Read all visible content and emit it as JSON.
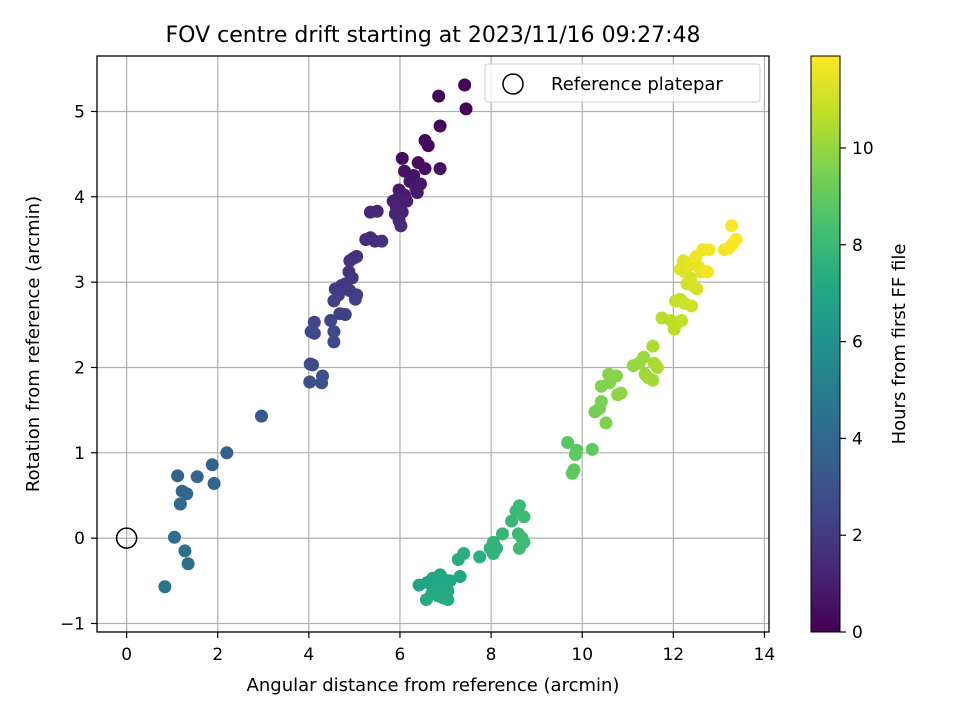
{
  "chart_data": {
    "type": "scatter",
    "title": "FOV centre drift starting at 2023/11/16 09:27:48",
    "xlabel": "Angular distance from reference (arcmin)",
    "ylabel": "Rotation from reference (arcmin)",
    "xlim": [
      -0.65,
      14.1
    ],
    "ylim": [
      -1.1,
      5.65
    ],
    "xticks": [
      0,
      2,
      4,
      6,
      8,
      10,
      12,
      14
    ],
    "yticks": [
      -1,
      0,
      1,
      2,
      3,
      4,
      5
    ],
    "grid": true,
    "legend": {
      "placement": "upper right",
      "entries": [
        "Reference platepar"
      ]
    },
    "reference_point": {
      "x": 0,
      "y": 0,
      "label": "Reference platepar"
    },
    "colorbar": {
      "label": "Hours from first FF file",
      "colormap": "viridis",
      "range": [
        0,
        11.9
      ],
      "ticks": [
        0,
        2,
        4,
        6,
        8,
        10
      ]
    },
    "points": [
      {
        "x": 7.42,
        "y": 5.31,
        "c": 0.05
      },
      {
        "x": 6.85,
        "y": 5.18,
        "c": 0.1
      },
      {
        "x": 7.45,
        "y": 5.03,
        "c": 0.15
      },
      {
        "x": 6.88,
        "y": 4.83,
        "c": 0.2
      },
      {
        "x": 6.55,
        "y": 4.66,
        "c": 0.25
      },
      {
        "x": 6.62,
        "y": 4.6,
        "c": 0.3
      },
      {
        "x": 6.05,
        "y": 4.45,
        "c": 0.35
      },
      {
        "x": 6.4,
        "y": 4.4,
        "c": 0.4
      },
      {
        "x": 6.55,
        "y": 4.33,
        "c": 0.45
      },
      {
        "x": 6.88,
        "y": 4.33,
        "c": 0.5
      },
      {
        "x": 6.1,
        "y": 4.3,
        "c": 0.55
      },
      {
        "x": 6.3,
        "y": 4.25,
        "c": 0.6
      },
      {
        "x": 6.22,
        "y": 4.18,
        "c": 0.65
      },
      {
        "x": 6.45,
        "y": 4.15,
        "c": 0.7
      },
      {
        "x": 5.98,
        "y": 4.08,
        "c": 0.75
      },
      {
        "x": 6.35,
        "y": 4.1,
        "c": 0.8
      },
      {
        "x": 6.38,
        "y": 4.05,
        "c": 0.85
      },
      {
        "x": 6.1,
        "y": 4.02,
        "c": 0.9
      },
      {
        "x": 5.95,
        "y": 3.98,
        "c": 0.95
      },
      {
        "x": 6.15,
        "y": 3.95,
        "c": 1.0
      },
      {
        "x": 5.85,
        "y": 3.95,
        "c": 1.05
      },
      {
        "x": 5.92,
        "y": 3.88,
        "c": 1.1
      },
      {
        "x": 6.05,
        "y": 3.82,
        "c": 1.15
      },
      {
        "x": 5.9,
        "y": 3.8,
        "c": 1.2
      },
      {
        "x": 5.5,
        "y": 3.83,
        "c": 1.25
      },
      {
        "x": 5.35,
        "y": 3.82,
        "c": 1.3
      },
      {
        "x": 5.98,
        "y": 3.72,
        "c": 1.35
      },
      {
        "x": 6.02,
        "y": 3.66,
        "c": 1.4
      },
      {
        "x": 5.35,
        "y": 3.52,
        "c": 1.45
      },
      {
        "x": 5.25,
        "y": 3.5,
        "c": 1.5
      },
      {
        "x": 5.45,
        "y": 3.48,
        "c": 1.55
      },
      {
        "x": 5.6,
        "y": 3.48,
        "c": 1.6
      },
      {
        "x": 5.05,
        "y": 3.3,
        "c": 1.65
      },
      {
        "x": 4.98,
        "y": 3.28,
        "c": 1.7
      },
      {
        "x": 4.9,
        "y": 3.25,
        "c": 1.75
      },
      {
        "x": 4.88,
        "y": 3.12,
        "c": 1.8
      },
      {
        "x": 4.95,
        "y": 3.05,
        "c": 1.85
      },
      {
        "x": 4.8,
        "y": 2.98,
        "c": 1.9
      },
      {
        "x": 4.72,
        "y": 2.96,
        "c": 1.95
      },
      {
        "x": 4.58,
        "y": 2.92,
        "c": 2.0
      },
      {
        "x": 4.9,
        "y": 2.9,
        "c": 2.05
      },
      {
        "x": 4.65,
        "y": 2.85,
        "c": 2.1
      },
      {
        "x": 5.05,
        "y": 2.85,
        "c": 2.15
      },
      {
        "x": 5.02,
        "y": 2.8,
        "c": 2.2
      },
      {
        "x": 4.55,
        "y": 2.78,
        "c": 2.25
      },
      {
        "x": 4.68,
        "y": 2.63,
        "c": 2.3
      },
      {
        "x": 4.8,
        "y": 2.62,
        "c": 2.35
      },
      {
        "x": 4.48,
        "y": 2.55,
        "c": 2.4
      },
      {
        "x": 4.12,
        "y": 2.53,
        "c": 2.45
      },
      {
        "x": 4.05,
        "y": 2.42,
        "c": 2.5
      },
      {
        "x": 4.12,
        "y": 2.4,
        "c": 2.55
      },
      {
        "x": 4.55,
        "y": 2.42,
        "c": 2.6
      },
      {
        "x": 4.55,
        "y": 2.3,
        "c": 2.65
      },
      {
        "x": 4.03,
        "y": 2.04,
        "c": 2.7
      },
      {
        "x": 4.08,
        "y": 2.03,
        "c": 2.75
      },
      {
        "x": 4.3,
        "y": 1.9,
        "c": 2.8
      },
      {
        "x": 4.02,
        "y": 1.83,
        "c": 2.85
      },
      {
        "x": 4.28,
        "y": 1.82,
        "c": 2.9
      },
      {
        "x": 2.96,
        "y": 1.43,
        "c": 3.3
      },
      {
        "x": 2.2,
        "y": 1.0,
        "c": 3.6
      },
      {
        "x": 1.88,
        "y": 0.86,
        "c": 3.7
      },
      {
        "x": 1.12,
        "y": 0.73,
        "c": 3.75
      },
      {
        "x": 1.55,
        "y": 0.72,
        "c": 3.8
      },
      {
        "x": 1.92,
        "y": 0.64,
        "c": 3.85
      },
      {
        "x": 1.22,
        "y": 0.55,
        "c": 3.9
      },
      {
        "x": 1.32,
        "y": 0.52,
        "c": 3.95
      },
      {
        "x": 1.18,
        "y": 0.4,
        "c": 4.0
      },
      {
        "x": 1.05,
        "y": 0.01,
        "c": 4.2
      },
      {
        "x": 1.28,
        "y": -0.15,
        "c": 4.3
      },
      {
        "x": 1.35,
        "y": -0.3,
        "c": 4.4
      },
      {
        "x": 0.84,
        "y": -0.57,
        "c": 4.5
      },
      {
        "x": 6.42,
        "y": -0.55,
        "c": 6.9
      },
      {
        "x": 6.6,
        "y": -0.52,
        "c": 6.95
      },
      {
        "x": 6.72,
        "y": -0.47,
        "c": 7.0
      },
      {
        "x": 6.88,
        "y": -0.43,
        "c": 7.0
      },
      {
        "x": 6.8,
        "y": -0.5,
        "c": 7.05
      },
      {
        "x": 6.95,
        "y": -0.48,
        "c": 7.05
      },
      {
        "x": 7.1,
        "y": -0.5,
        "c": 7.1
      },
      {
        "x": 7.32,
        "y": -0.45,
        "c": 7.1
      },
      {
        "x": 6.78,
        "y": -0.6,
        "c": 7.15
      },
      {
        "x": 6.92,
        "y": -0.62,
        "c": 7.15
      },
      {
        "x": 7.05,
        "y": -0.62,
        "c": 7.2
      },
      {
        "x": 6.7,
        "y": -0.65,
        "c": 7.2
      },
      {
        "x": 6.85,
        "y": -0.68,
        "c": 7.25
      },
      {
        "x": 6.58,
        "y": -0.72,
        "c": 7.25
      },
      {
        "x": 7.05,
        "y": -0.72,
        "c": 7.3
      },
      {
        "x": 6.95,
        "y": -0.7,
        "c": 7.3
      },
      {
        "x": 7.28,
        "y": -0.25,
        "c": 7.4
      },
      {
        "x": 7.4,
        "y": -0.18,
        "c": 7.45
      },
      {
        "x": 7.75,
        "y": -0.22,
        "c": 7.5
      },
      {
        "x": 7.98,
        "y": -0.12,
        "c": 7.6
      },
      {
        "x": 8.05,
        "y": -0.05,
        "c": 7.65
      },
      {
        "x": 8.12,
        "y": -0.12,
        "c": 7.7
      },
      {
        "x": 8.05,
        "y": -0.18,
        "c": 7.75
      },
      {
        "x": 8.25,
        "y": 0.05,
        "c": 7.8
      },
      {
        "x": 8.45,
        "y": 0.2,
        "c": 7.85
      },
      {
        "x": 8.55,
        "y": 0.32,
        "c": 7.9
      },
      {
        "x": 8.62,
        "y": 0.38,
        "c": 7.95
      },
      {
        "x": 8.72,
        "y": 0.25,
        "c": 8.0
      },
      {
        "x": 8.6,
        "y": 0.05,
        "c": 8.05
      },
      {
        "x": 8.68,
        "y": 0.0,
        "c": 8.1
      },
      {
        "x": 8.72,
        "y": -0.05,
        "c": 8.15
      },
      {
        "x": 8.62,
        "y": -0.12,
        "c": 8.2
      },
      {
        "x": 9.68,
        "y": 1.12,
        "c": 8.8
      },
      {
        "x": 9.88,
        "y": 1.03,
        "c": 8.85
      },
      {
        "x": 9.85,
        "y": 0.98,
        "c": 8.9
      },
      {
        "x": 10.22,
        "y": 1.04,
        "c": 8.95
      },
      {
        "x": 9.82,
        "y": 0.8,
        "c": 8.9
      },
      {
        "x": 9.78,
        "y": 0.76,
        "c": 8.95
      },
      {
        "x": 10.28,
        "y": 1.48,
        "c": 9.4
      },
      {
        "x": 10.38,
        "y": 1.52,
        "c": 9.45
      },
      {
        "x": 10.42,
        "y": 1.6,
        "c": 9.5
      },
      {
        "x": 10.52,
        "y": 1.35,
        "c": 9.55
      },
      {
        "x": 10.42,
        "y": 1.78,
        "c": 9.6
      },
      {
        "x": 10.6,
        "y": 1.82,
        "c": 9.65
      },
      {
        "x": 10.58,
        "y": 1.92,
        "c": 9.7
      },
      {
        "x": 10.75,
        "y": 1.9,
        "c": 9.75
      },
      {
        "x": 10.78,
        "y": 1.68,
        "c": 9.8
      },
      {
        "x": 10.85,
        "y": 1.7,
        "c": 9.85
      },
      {
        "x": 11.12,
        "y": 2.02,
        "c": 10.0
      },
      {
        "x": 11.25,
        "y": 2.05,
        "c": 10.05
      },
      {
        "x": 11.35,
        "y": 2.12,
        "c": 10.1
      },
      {
        "x": 11.38,
        "y": 1.92,
        "c": 10.15
      },
      {
        "x": 11.45,
        "y": 1.88,
        "c": 10.2
      },
      {
        "x": 11.55,
        "y": 1.85,
        "c": 10.25
      },
      {
        "x": 11.58,
        "y": 2.05,
        "c": 10.3
      },
      {
        "x": 11.65,
        "y": 2.0,
        "c": 10.35
      },
      {
        "x": 11.55,
        "y": 2.25,
        "c": 10.4
      },
      {
        "x": 11.75,
        "y": 2.58,
        "c": 10.6
      },
      {
        "x": 11.95,
        "y": 2.55,
        "c": 10.65
      },
      {
        "x": 12.02,
        "y": 2.45,
        "c": 10.7
      },
      {
        "x": 12.08,
        "y": 2.52,
        "c": 10.75
      },
      {
        "x": 12.18,
        "y": 2.55,
        "c": 10.8
      },
      {
        "x": 12.05,
        "y": 2.78,
        "c": 10.85
      },
      {
        "x": 12.15,
        "y": 2.8,
        "c": 10.9
      },
      {
        "x": 12.25,
        "y": 2.75,
        "c": 10.95
      },
      {
        "x": 12.4,
        "y": 2.72,
        "c": 11.0
      },
      {
        "x": 12.3,
        "y": 2.98,
        "c": 11.05
      },
      {
        "x": 12.45,
        "y": 2.95,
        "c": 11.1
      },
      {
        "x": 12.52,
        "y": 2.92,
        "c": 11.15
      },
      {
        "x": 12.38,
        "y": 3.05,
        "c": 11.2
      },
      {
        "x": 12.25,
        "y": 3.12,
        "c": 11.25
      },
      {
        "x": 12.15,
        "y": 3.15,
        "c": 11.3
      },
      {
        "x": 12.22,
        "y": 3.25,
        "c": 11.35
      },
      {
        "x": 12.35,
        "y": 3.2,
        "c": 11.4
      },
      {
        "x": 12.45,
        "y": 3.25,
        "c": 11.45
      },
      {
        "x": 12.55,
        "y": 3.18,
        "c": 11.5
      },
      {
        "x": 12.62,
        "y": 3.12,
        "c": 11.55
      },
      {
        "x": 12.5,
        "y": 3.3,
        "c": 11.6
      },
      {
        "x": 12.65,
        "y": 3.38,
        "c": 11.65
      },
      {
        "x": 12.78,
        "y": 3.38,
        "c": 11.7
      },
      {
        "x": 12.75,
        "y": 3.12,
        "c": 11.72
      },
      {
        "x": 13.12,
        "y": 3.38,
        "c": 11.75
      },
      {
        "x": 13.22,
        "y": 3.4,
        "c": 11.78
      },
      {
        "x": 13.3,
        "y": 3.45,
        "c": 11.8
      },
      {
        "x": 13.38,
        "y": 3.5,
        "c": 11.85
      },
      {
        "x": 13.28,
        "y": 3.66,
        "c": 11.9
      }
    ]
  }
}
